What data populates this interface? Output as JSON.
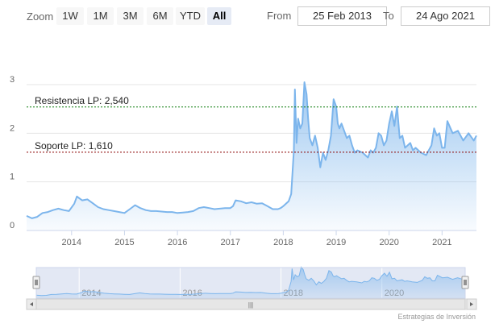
{
  "range_selector": {
    "zoom_label": "Zoom",
    "buttons": [
      {
        "label": "1W",
        "active": false
      },
      {
        "label": "1M",
        "active": false
      },
      {
        "label": "3M",
        "active": false
      },
      {
        "label": "6M",
        "active": false
      },
      {
        "label": "YTD",
        "active": false
      },
      {
        "label": "All",
        "active": true
      }
    ],
    "from_label": "From",
    "from_value": "25 Feb 2013",
    "to_label": "To",
    "to_value": "24 Ago 2021"
  },
  "credits": "Estrategias de Inversión",
  "colors": {
    "series": "#7cb5ec",
    "resistance": "#0a7a0a",
    "support": "#8b0000",
    "grid": "#e6e6e6",
    "navigator_mask": "#ccd6eb"
  },
  "navigator": {
    "labels": [
      "2014",
      "2016",
      "2018",
      "2020"
    ],
    "scroll_grip": "|||"
  },
  "chart_data": {
    "type": "area",
    "title": "",
    "xlabel": "",
    "ylabel": "",
    "ylim": [
      0,
      3
    ],
    "xlim": [
      2013.15,
      2021.65
    ],
    "yticks": [
      "0",
      "1",
      "2",
      "3"
    ],
    "xticks": [
      "2014",
      "2015",
      "2016",
      "2017",
      "2018",
      "2019",
      "2020",
      "2021"
    ],
    "grid": true,
    "series": [
      {
        "x": [
          2013.15,
          2013.25,
          2013.35,
          2013.45,
          2013.55,
          2013.65,
          2013.75,
          2013.85,
          2013.95,
          2014.05,
          2014.1,
          2014.15,
          2014.2,
          2014.3,
          2014.4,
          2014.5,
          2014.6,
          2014.7,
          2014.8,
          2014.9,
          2015.0,
          2015.1,
          2015.2,
          2015.3,
          2015.4,
          2015.5,
          2015.6,
          2015.7,
          2015.8,
          2015.9,
          2016.0,
          2016.1,
          2016.2,
          2016.3,
          2016.4,
          2016.5,
          2016.6,
          2016.7,
          2016.8,
          2016.9,
          2017.0,
          2017.05,
          2017.1,
          2017.2,
          2017.3,
          2017.4,
          2017.5,
          2017.6,
          2017.7,
          2017.8,
          2017.9,
          2017.95,
          2018.0,
          2018.05,
          2018.1,
          2018.15,
          2018.2,
          2018.22,
          2018.25,
          2018.28,
          2018.32,
          2018.36,
          2018.4,
          2018.44,
          2018.47,
          2018.5,
          2018.55,
          2018.6,
          2018.65,
          2018.7,
          2018.75,
          2018.8,
          2018.85,
          2018.9,
          2018.95,
          2019.0,
          2019.03,
          2019.06,
          2019.1,
          2019.15,
          2019.2,
          2019.25,
          2019.3,
          2019.35,
          2019.4,
          2019.5,
          2019.6,
          2019.65,
          2019.7,
          2019.75,
          2019.8,
          2019.85,
          2019.9,
          2019.95,
          2020.0,
          2020.05,
          2020.1,
          2020.15,
          2020.2,
          2020.25,
          2020.3,
          2020.35,
          2020.4,
          2020.45,
          2020.5,
          2020.6,
          2020.7,
          2020.8,
          2020.85,
          2020.9,
          2020.95,
          2021.0,
          2021.05,
          2021.1,
          2021.2,
          2021.3,
          2021.4,
          2021.5,
          2021.6,
          2021.65
        ],
        "values": [
          0.3,
          0.25,
          0.28,
          0.36,
          0.38,
          0.42,
          0.45,
          0.42,
          0.4,
          0.55,
          0.7,
          0.66,
          0.62,
          0.64,
          0.56,
          0.48,
          0.44,
          0.42,
          0.4,
          0.38,
          0.36,
          0.44,
          0.52,
          0.46,
          0.42,
          0.4,
          0.4,
          0.39,
          0.38,
          0.38,
          0.36,
          0.37,
          0.38,
          0.4,
          0.46,
          0.48,
          0.46,
          0.44,
          0.45,
          0.46,
          0.46,
          0.5,
          0.62,
          0.6,
          0.56,
          0.58,
          0.55,
          0.56,
          0.5,
          0.44,
          0.44,
          0.46,
          0.5,
          0.55,
          0.6,
          0.75,
          1.65,
          2.9,
          1.8,
          2.3,
          2.1,
          2.2,
          3.05,
          2.8,
          2.3,
          1.9,
          1.75,
          1.95,
          1.7,
          1.3,
          1.6,
          1.45,
          1.65,
          1.95,
          2.7,
          2.55,
          2.2,
          2.1,
          2.2,
          2.05,
          1.9,
          1.95,
          1.75,
          1.6,
          1.65,
          1.6,
          1.5,
          1.65,
          1.6,
          1.7,
          2.0,
          1.95,
          1.75,
          1.85,
          2.2,
          2.45,
          2.15,
          2.55,
          1.9,
          1.95,
          1.7,
          1.75,
          1.8,
          1.65,
          1.7,
          1.6,
          1.55,
          1.75,
          2.1,
          1.95,
          2.0,
          1.7,
          1.7,
          2.25,
          2.0,
          2.05,
          1.85,
          2.0,
          1.85,
          1.95
        ]
      }
    ],
    "plot_lines": [
      {
        "label": "Resistencia LP: 2,540",
        "value": 2.54
      },
      {
        "label": "Soporte LP: 1,610",
        "value": 1.61
      }
    ]
  }
}
